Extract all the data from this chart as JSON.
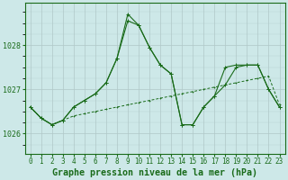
{
  "title": "Graphe pression niveau de la mer (hPa)",
  "x": [
    0,
    1,
    2,
    3,
    4,
    5,
    6,
    7,
    8,
    9,
    10,
    11,
    12,
    13,
    14,
    15,
    16,
    17,
    18,
    19,
    20,
    21,
    22,
    23
  ],
  "line1": [
    1026.6,
    1026.35,
    1026.2,
    1026.3,
    1026.4,
    1026.45,
    1026.5,
    1026.55,
    1026.6,
    1026.65,
    1026.7,
    1026.75,
    1026.8,
    1026.85,
    1026.9,
    1026.95,
    1027.0,
    1027.05,
    1027.1,
    1027.15,
    1027.2,
    1027.25,
    1027.3,
    1026.65
  ],
  "line2": [
    1026.6,
    1026.35,
    1026.2,
    1026.3,
    1026.6,
    1026.75,
    1026.9,
    1027.15,
    1027.7,
    1028.55,
    1028.45,
    1027.95,
    1027.55,
    1027.35,
    1026.2,
    1026.2,
    1026.6,
    1026.85,
    1027.1,
    1027.5,
    1027.55,
    1027.55,
    1027.0,
    1026.6
  ],
  "line3": [
    1026.6,
    1026.35,
    1026.2,
    1026.3,
    1026.6,
    1026.75,
    1026.9,
    1027.15,
    1027.7,
    1028.7,
    1028.45,
    1027.95,
    1027.55,
    1027.35,
    1026.2,
    1026.2,
    1026.6,
    1026.85,
    1027.5,
    1027.55,
    1027.55,
    1027.55,
    1027.0,
    1026.6
  ],
  "bg_color": "#cde8e8",
  "grid_color": "#b0c8c8",
  "line_color": "#1a6b1a",
  "ylim_min": 1025.55,
  "ylim_max": 1028.95,
  "yticks": [
    1026,
    1027,
    1028
  ],
  "title_fontsize": 7.2,
  "tick_fontsize": 5.5,
  "figwidth": 3.2,
  "figheight": 2.0,
  "dpi": 100
}
